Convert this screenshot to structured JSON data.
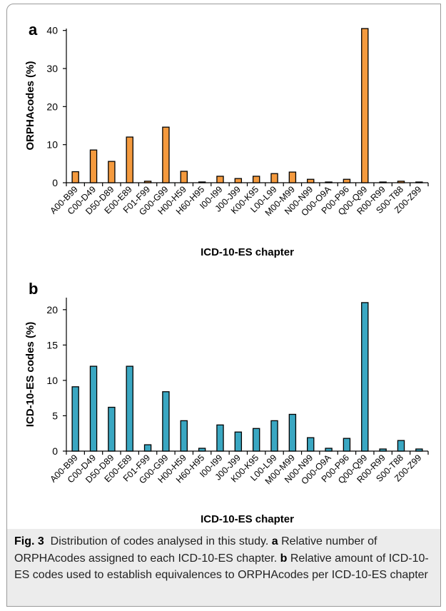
{
  "chart_data": [
    {
      "type": "bar",
      "panel_label": "a",
      "categories": [
        "A00-B99",
        "C00-D49",
        "D50-D89",
        "E00-E89",
        "F01-F99",
        "G00-G99",
        "H00-H59",
        "H60-H95",
        "I00-I99",
        "J00-J99",
        "K00-K95",
        "L00-L99",
        "M00-M99",
        "N00-N99",
        "O00-O9A",
        "P00-P96",
        "Q00-Q99",
        "R00-R99",
        "S00-T88",
        "Z00-Z99"
      ],
      "values": [
        2.9,
        8.6,
        5.6,
        12.0,
        0.4,
        14.6,
        3.0,
        0.2,
        1.7,
        1.1,
        1.7,
        2.4,
        2.8,
        0.9,
        0.1,
        0.9,
        40.5,
        0.1,
        0.4,
        0.1
      ],
      "xlabel": "ICD-10-ES chapter",
      "ylabel": "ORPHAcodes (%)",
      "yticks": [
        0,
        10,
        20,
        30,
        40
      ],
      "ylim": [
        0,
        40.5
      ],
      "bar_color": "#f49a3e",
      "grid": false
    },
    {
      "type": "bar",
      "panel_label": "b",
      "categories": [
        "A00-B99",
        "C00-D49",
        "D50-D89",
        "E00-E89",
        "F01-F99",
        "G00-G99",
        "H00-H59",
        "H60-H95",
        "I00-I99",
        "J00-J99",
        "K00-K95",
        "L00-L99",
        "M00-M99",
        "N00-N99",
        "O00-O9A",
        "P00-P96",
        "Q00-Q99",
        "R00-R99",
        "S00-T88",
        "Z00-Z99"
      ],
      "values": [
        9.1,
        12.0,
        6.2,
        12.0,
        0.9,
        8.4,
        4.3,
        0.4,
        3.7,
        2.7,
        3.2,
        4.3,
        5.2,
        1.9,
        0.4,
        1.8,
        21.0,
        0.3,
        1.5,
        0.3
      ],
      "xlabel": "ICD-10-ES chapter",
      "ylabel": "ICD-10-ES codes (%)",
      "yticks": [
        0,
        5,
        10,
        15,
        20
      ],
      "ylim": [
        0,
        21.7
      ],
      "bar_color": "#3aa7c2",
      "grid": false
    }
  ],
  "caption": {
    "fig_label": "Fig. 3",
    "text": "Distribution of codes analysed in this study.",
    "part_a_label": "a",
    "part_a_text": "Relative number of ORPHAcodes assigned to each ICD-10-ES chapter.",
    "part_b_label": "b",
    "part_b_text": "Relative amount of ICD-10-ES codes used to establish equivalences to ORPHAcodes per ICD-10-ES chapter"
  }
}
